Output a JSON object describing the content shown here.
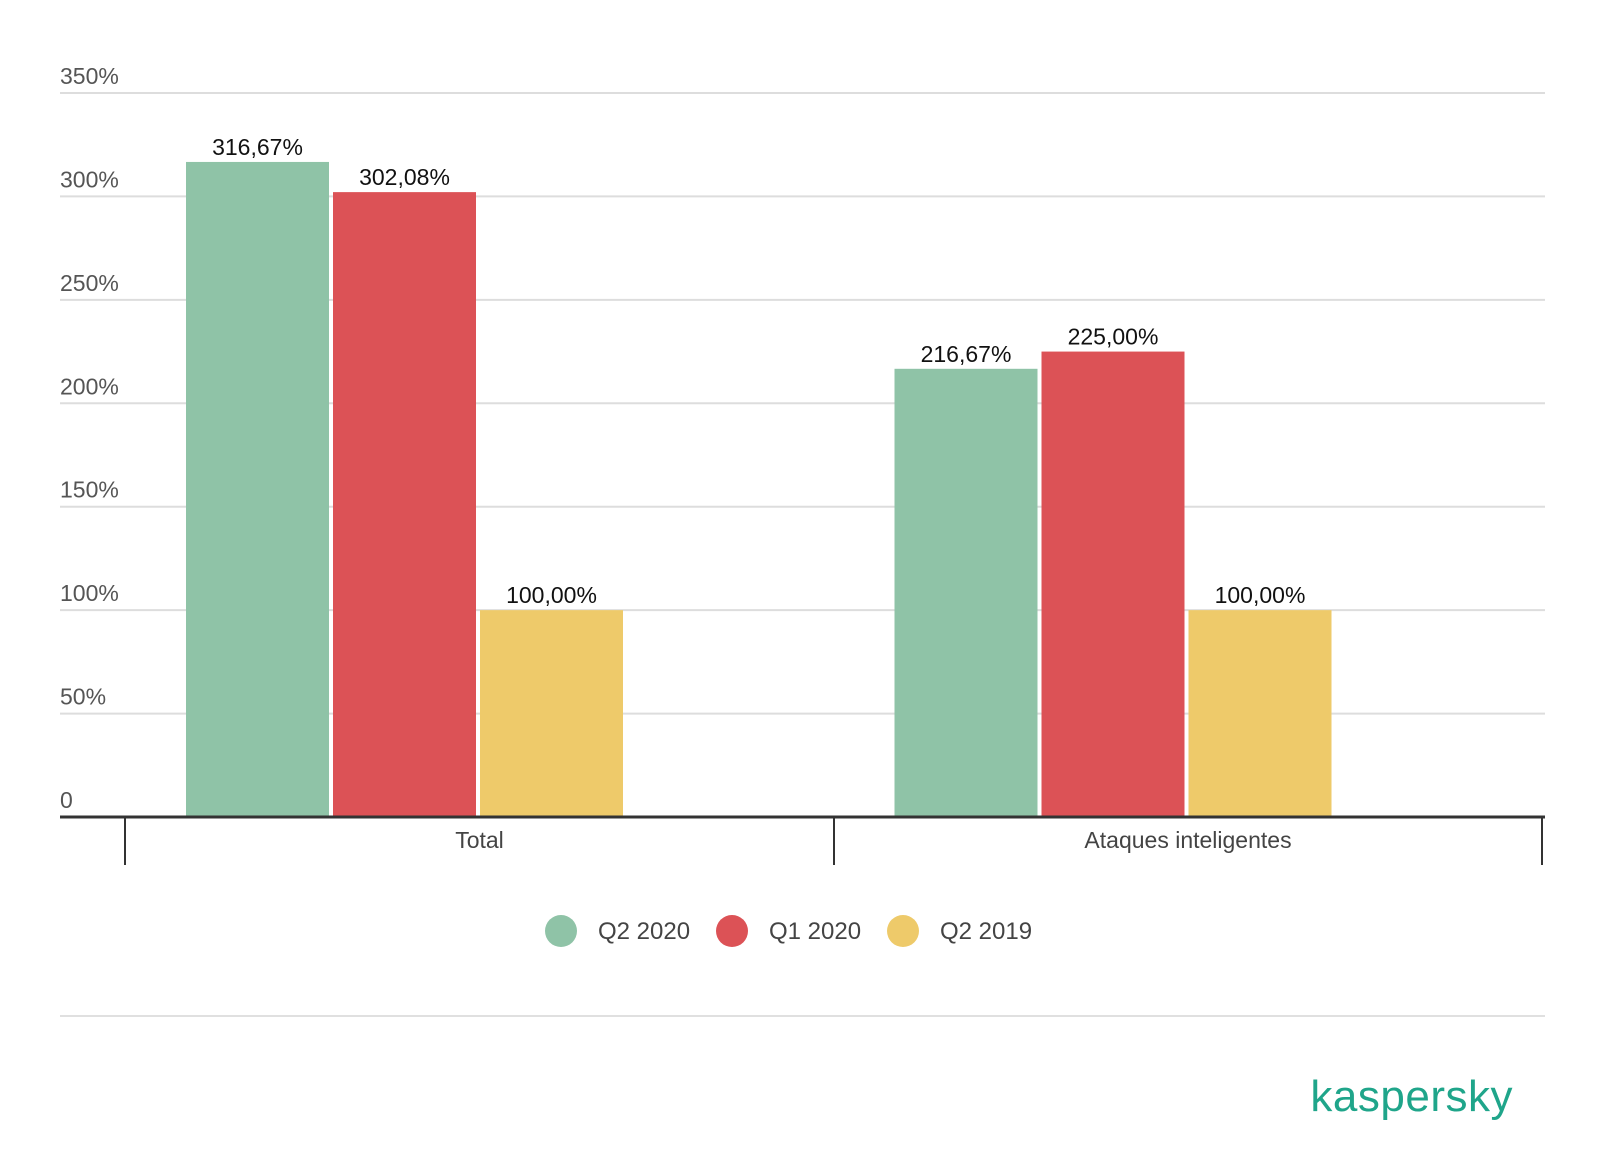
{
  "chart_data": {
    "type": "bar",
    "categories": [
      "Total",
      "Ataques inteligentes"
    ],
    "series": [
      {
        "name": "Q2 2020",
        "color": "#8fc3a7",
        "values": [
          316.67,
          216.67
        ],
        "labels": [
          "316,67%",
          "216,67%"
        ]
      },
      {
        "name": "Q1 2020",
        "color": "#dc5256",
        "values": [
          302.08,
          225.0
        ],
        "labels": [
          "302,08%",
          "225,00%"
        ]
      },
      {
        "name": "Q2 2019",
        "color": "#eeca6a",
        "values": [
          100.0,
          100.0
        ],
        "labels": [
          "100,00%",
          "100,00%"
        ]
      }
    ],
    "yticks": [
      0,
      50,
      100,
      150,
      200,
      250,
      300,
      350
    ],
    "ytick_labels": [
      "0",
      "50%",
      "100%",
      "150%",
      "200%",
      "250%",
      "300%",
      "350%"
    ],
    "ylim": [
      0,
      350
    ],
    "grid": true,
    "legend_position": "bottom-center",
    "title": "",
    "xlabel": "",
    "ylabel": ""
  },
  "brand": {
    "logo_text": "kaspersky",
    "color": "#1fa58a"
  }
}
